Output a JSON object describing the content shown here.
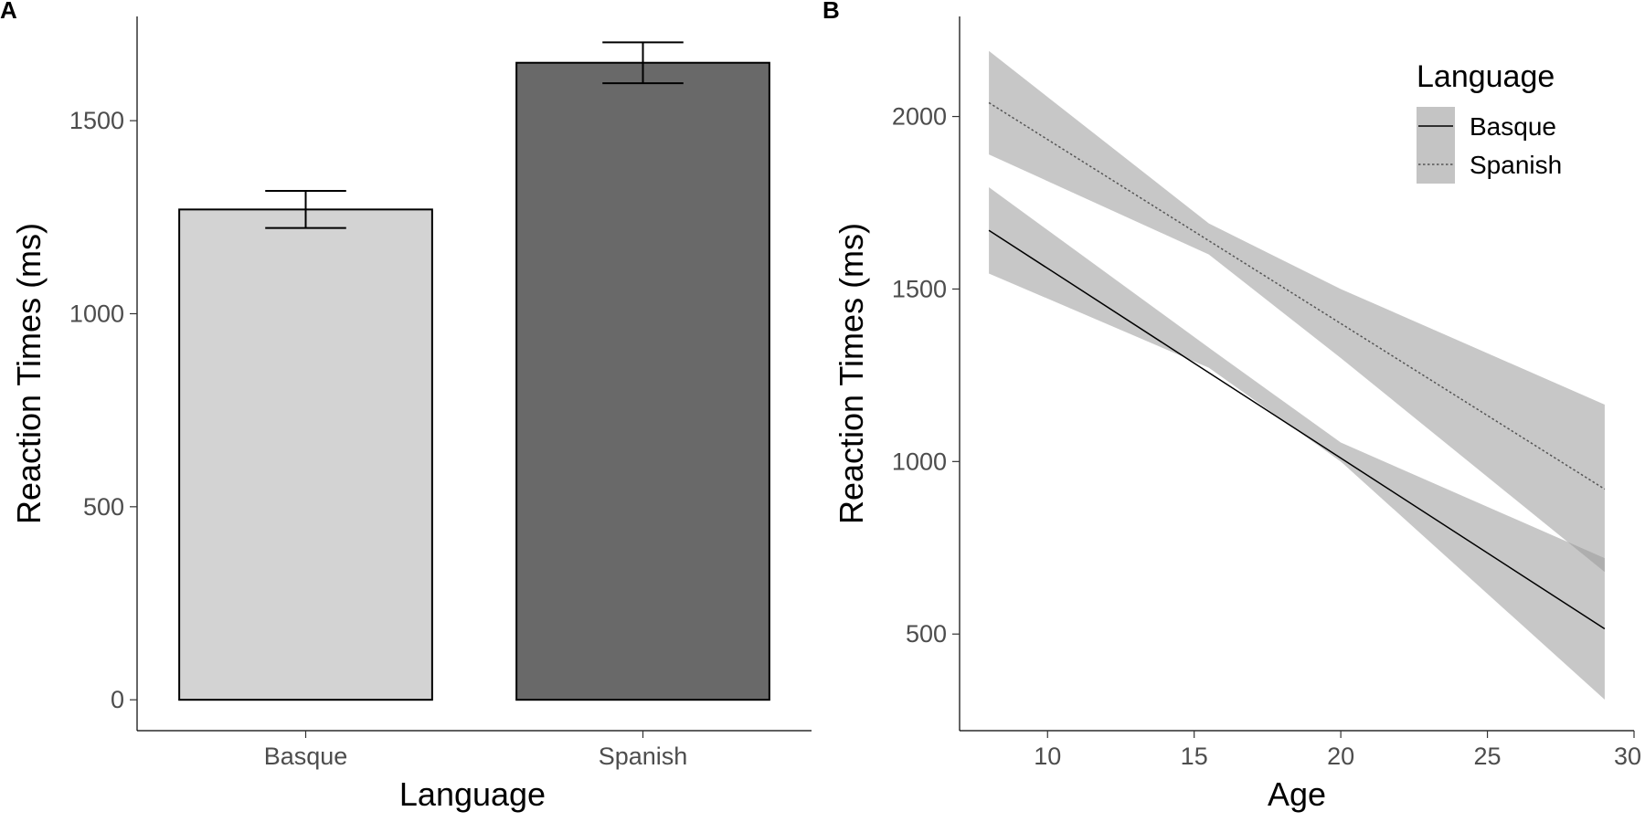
{
  "chart_data": [
    {
      "panel": "A",
      "type": "bar",
      "xlabel": "Language",
      "ylabel": "Reaction Times (ms)",
      "categories": [
        "Basque",
        "Spanish"
      ],
      "values": [
        1270,
        1650
      ],
      "error_low": [
        1222,
        1597
      ],
      "error_high": [
        1318,
        1703
      ],
      "colors": [
        "#d3d3d3",
        "#696969"
      ],
      "ylim": [
        -80,
        1770
      ],
      "yticks": [
        0,
        500,
        1000,
        1500
      ],
      "grid": false
    },
    {
      "panel": "B",
      "type": "line",
      "xlabel": "Age",
      "ylabel": "Reaction Times (ms)",
      "xlim": [
        7,
        30
      ],
      "ylim": [
        220,
        2290
      ],
      "xticks": [
        10,
        15,
        20,
        25,
        30
      ],
      "yticks": [
        500,
        1000,
        1500,
        2000
      ],
      "grid": false,
      "legend": {
        "title": "Language",
        "position": "top-right"
      },
      "series": [
        {
          "name": "Basque",
          "style": "solid",
          "x": [
            8,
            29
          ],
          "y": [
            1670,
            515
          ],
          "ci_x": [
            8,
            15.5,
            20,
            29
          ],
          "ci_lower": [
            1545,
            1272,
            1000,
            310
          ],
          "ci_upper": [
            1795,
            1330,
            1055,
            720
          ]
        },
        {
          "name": "Spanish",
          "style": "dotted",
          "x": [
            8,
            29
          ],
          "y": [
            2040,
            920
          ],
          "ci_x": [
            8,
            15.5,
            20,
            29
          ],
          "ci_lower": [
            1890,
            1600,
            1300,
            680
          ],
          "ci_upper": [
            2190,
            1690,
            1500,
            1165
          ]
        }
      ]
    }
  ]
}
